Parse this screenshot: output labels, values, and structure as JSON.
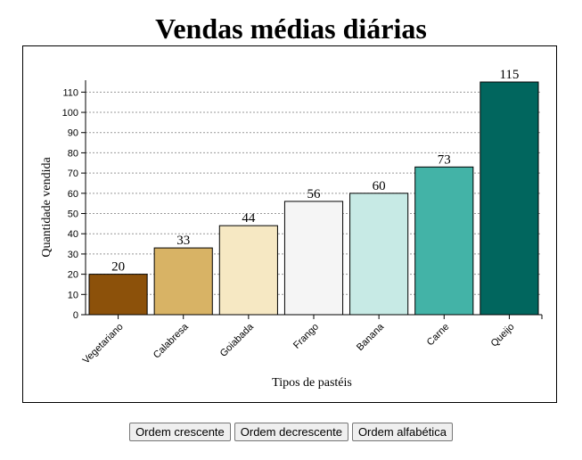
{
  "chart_data": {
    "type": "bar",
    "title": "Vendas médias diárias",
    "xlabel": "Tipos de pastéis",
    "ylabel": "Quantidade vendida",
    "categories": [
      "Vegetariano",
      "Calabresa",
      "Goiabada",
      "Frango",
      "Banana",
      "Carne",
      "Queijo"
    ],
    "values": [
      20,
      33,
      44,
      56,
      60,
      73,
      115
    ],
    "colors": [
      "#8c510a",
      "#d8b365",
      "#f6e8c3",
      "#f5f5f5",
      "#c7eae5",
      "#43b3a7",
      "#01665e"
    ],
    "ylim": [
      0,
      115
    ],
    "yticks": [
      0,
      10,
      20,
      30,
      40,
      50,
      60,
      70,
      80,
      90,
      100,
      110
    ],
    "grid": true,
    "legend": "none"
  },
  "controls": {
    "sort_ascending_label": "Ordem crescente",
    "sort_descending_label": "Ordem decrescente",
    "sort_alphabetical_label": "Ordem alfabética"
  }
}
